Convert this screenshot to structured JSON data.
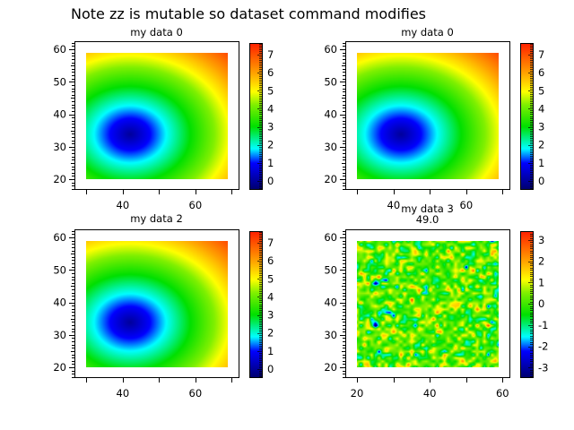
{
  "title": "Note zz is mutable so dataset command modifies",
  "colormap": [
    "#00006e",
    "#0000ff",
    "#00ffff",
    "#00e000",
    "#80f000",
    "#ffff00",
    "#ffa000",
    "#ff2000"
  ],
  "chart_data": [
    {
      "type": "heatmap",
      "title": "my data 0",
      "subtitle": "",
      "xlim": [
        26.7,
        71.9
      ],
      "ylim": [
        17,
        62.5
      ],
      "x_extent": [
        30,
        69
      ],
      "y_extent": [
        20,
        59
      ],
      "xticks": [
        "40",
        "60"
      ],
      "yticks": [
        "20",
        "30",
        "40",
        "50",
        "60"
      ],
      "color_range": [
        -0.45,
        7.65
      ],
      "colorbar_ticks": [
        "0",
        "1",
        "2",
        "3",
        "4",
        "5",
        "6",
        "7"
      ],
      "minimum_at": [
        42,
        34
      ]
    },
    {
      "type": "heatmap",
      "title": "my data 0",
      "subtitle": "",
      "xlim": [
        26.7,
        71.9
      ],
      "ylim": [
        17,
        62.5
      ],
      "x_extent": [
        30,
        69
      ],
      "y_extent": [
        20,
        59
      ],
      "xticks": [
        "40",
        "60"
      ],
      "yticks": [
        "20",
        "30",
        "40",
        "50",
        "60"
      ],
      "color_range": [
        -0.45,
        7.65
      ],
      "colorbar_ticks": [
        "0",
        "1",
        "2",
        "3",
        "4",
        "5",
        "6",
        "7"
      ],
      "minimum_at": [
        42,
        34
      ]
    },
    {
      "type": "heatmap",
      "title": "my data 2",
      "subtitle": "",
      "xlim": [
        26.7,
        71.9
      ],
      "ylim": [
        17,
        62.5
      ],
      "x_extent": [
        30,
        69
      ],
      "y_extent": [
        20,
        59
      ],
      "xticks": [
        "40",
        "60"
      ],
      "yticks": [
        "20",
        "30",
        "40",
        "50",
        "60"
      ],
      "color_range": [
        -0.45,
        7.65
      ],
      "colorbar_ticks": [
        "0",
        "1",
        "2",
        "3",
        "4",
        "5",
        "6",
        "7"
      ],
      "minimum_at": [
        42,
        34
      ]
    },
    {
      "type": "heatmap",
      "title": "my data 3",
      "subtitle": "49.0",
      "xlim": [
        16.8,
        61.9
      ],
      "ylim": [
        17,
        62.5
      ],
      "x_extent": [
        20,
        59
      ],
      "y_extent": [
        20,
        59
      ],
      "xticks": [
        "20",
        "40",
        "60"
      ],
      "yticks": [
        "20",
        "30",
        "40",
        "50",
        "60"
      ],
      "color_range": [
        -3.45,
        3.42
      ],
      "colorbar_ticks": [
        "-3",
        "-2",
        "-1",
        "0",
        "1",
        "2",
        "3"
      ]
    }
  ]
}
